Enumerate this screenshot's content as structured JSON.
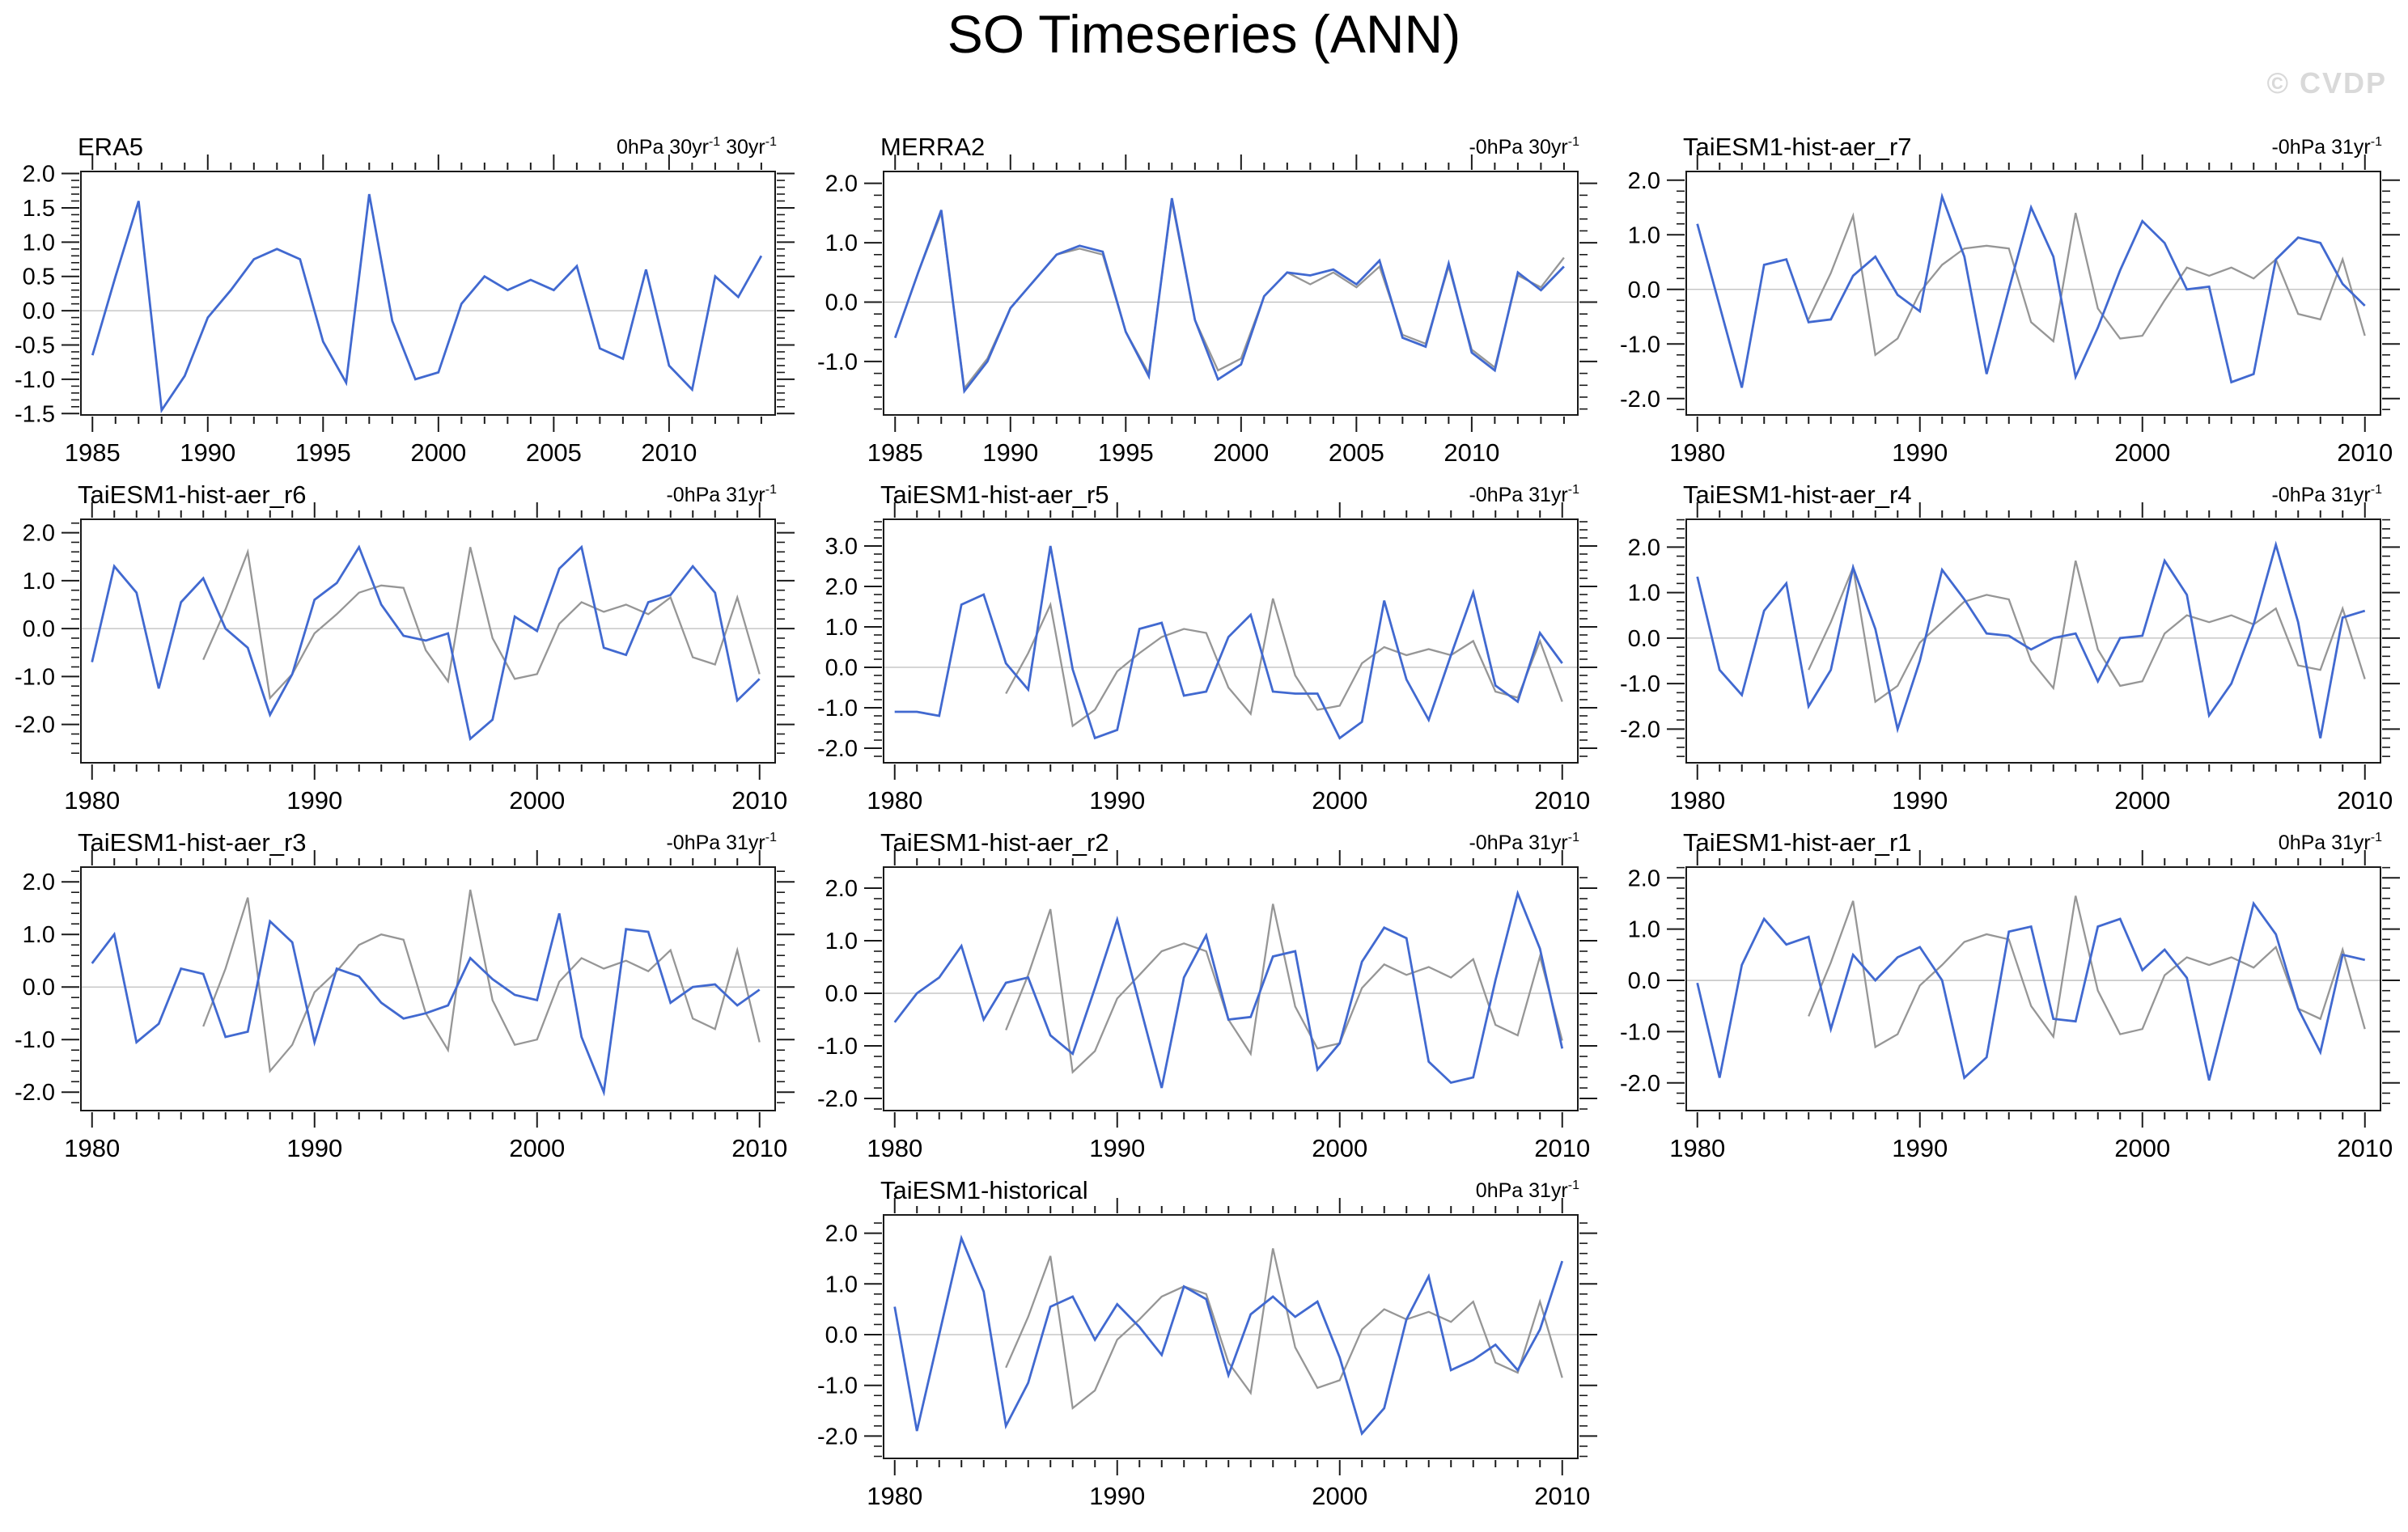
{
  "page": {
    "title": "SO Timeseries (ANN)",
    "watermark": "© CVDP"
  },
  "colors": {
    "model_line": "#4169d0",
    "obs_line": "#969696",
    "zero_line": "#bcbcbc",
    "axis": "#1a1a1a",
    "watermark": "#d9d9d9"
  },
  "chart_data": [
    {
      "type": "line",
      "name": "ERA5",
      "units_label": "0hPa 30yr{-1} 30yr{-1}",
      "position": {
        "row": 0,
        "col": 0
      },
      "xlim": [
        1984.5,
        2014.6
      ],
      "ylim": [
        -1.52,
        2.03
      ],
      "xticks": [
        1985,
        1990,
        1995,
        2000,
        2005,
        2010
      ],
      "yticks": [
        2.0,
        1.5,
        1.0,
        0.5,
        0.0,
        -0.5,
        -1.0,
        -1.5
      ],
      "ytick_minor_step": 0.1,
      "grid": "zero-line-only",
      "legend": "none",
      "series": [
        {
          "name": "ERA5",
          "role": "model",
          "color_key": "model_line",
          "start_year": 1985,
          "values": [
            -0.65,
            0.5,
            1.6,
            -1.45,
            -0.95,
            -0.1,
            0.3,
            0.75,
            0.9,
            0.75,
            -0.45,
            -1.05,
            1.7,
            -0.15,
            -1.0,
            -0.9,
            0.1,
            0.5,
            0.3,
            0.45,
            0.3,
            0.65,
            -0.55,
            -0.7,
            0.6,
            -0.8,
            -1.15,
            0.5,
            0.2,
            0.8
          ]
        }
      ]
    },
    {
      "type": "line",
      "name": "MERRA2",
      "units_label": "-0hPa 30yr{-1}",
      "position": {
        "row": 0,
        "col": 1
      },
      "xlim": [
        1984.5,
        2014.6
      ],
      "ylim": [
        -1.9,
        2.2
      ],
      "xticks": [
        1985,
        1990,
        1995,
        2000,
        2005,
        2010
      ],
      "yticks": [
        2.0,
        1.0,
        0.0,
        -1.0
      ],
      "ytick_minor_step": 0.2,
      "grid": "zero-line-only",
      "legend": "none",
      "series": [
        {
          "name": "MERRA2",
          "role": "model",
          "color_key": "model_line",
          "start_year": 1985,
          "values": [
            -0.6,
            0.5,
            1.55,
            -1.5,
            -1.0,
            -0.1,
            0.35,
            0.8,
            0.95,
            0.85,
            -0.5,
            -1.25,
            1.75,
            -0.3,
            -1.3,
            -1.05,
            0.1,
            0.5,
            0.45,
            0.55,
            0.3,
            0.7,
            -0.6,
            -0.75,
            0.65,
            -0.85,
            -1.15,
            0.5,
            0.2,
            0.6
          ]
        },
        {
          "name": "observations",
          "role": "obs",
          "color_key": "obs_line",
          "start_year": 1985,
          "values": [
            -0.6,
            0.5,
            1.5,
            -1.45,
            -0.95,
            -0.1,
            0.35,
            0.8,
            0.9,
            0.8,
            -0.5,
            -1.2,
            1.7,
            -0.3,
            -1.15,
            -0.95,
            0.1,
            0.5,
            0.3,
            0.5,
            0.25,
            0.6,
            -0.55,
            -0.7,
            0.6,
            -0.8,
            -1.1,
            0.45,
            0.25,
            0.75
          ]
        }
      ]
    },
    {
      "type": "line",
      "name": "TaiESM1-hist-aer_r7",
      "units_label": "-0hPa 31yr{-1}",
      "position": {
        "row": 0,
        "col": 2
      },
      "xlim": [
        1979.5,
        2010.7
      ],
      "ylim": [
        -2.3,
        2.16
      ],
      "xticks": [
        1980,
        1990,
        2000,
        2010
      ],
      "yticks": [
        2.0,
        1.0,
        0.0,
        -1.0,
        -2.0
      ],
      "ytick_minor_step": 0.2,
      "grid": "zero-line-only",
      "legend": "none",
      "series": [
        {
          "name": "TaiESM1-hist-aer_r7",
          "role": "model",
          "color_key": "model_line",
          "start_year": 1980,
          "values": [
            1.2,
            -0.3,
            -1.8,
            0.45,
            0.55,
            -0.6,
            -0.55,
            0.25,
            0.6,
            -0.1,
            -0.4,
            1.7,
            0.6,
            -1.55,
            0.0,
            1.5,
            0.6,
            -1.6,
            -0.7,
            0.35,
            1.25,
            0.85,
            0.0,
            0.05,
            -1.7,
            -1.55,
            0.55,
            0.95,
            0.85,
            0.1,
            -0.3
          ]
        },
        {
          "name": "observations",
          "role": "obs",
          "color_key": "obs_line",
          "start_year": 1985,
          "values": [
            -0.55,
            0.3,
            1.35,
            -1.2,
            -0.9,
            -0.05,
            0.45,
            0.75,
            0.8,
            0.75,
            -0.6,
            -0.95,
            1.4,
            -0.35,
            -0.9,
            -0.85,
            -0.2,
            0.4,
            0.25,
            0.4,
            0.2,
            0.55,
            -0.45,
            -0.55,
            0.55,
            -0.85
          ]
        }
      ]
    },
    {
      "type": "line",
      "name": "TaiESM1-hist-aer_r6",
      "units_label": "-0hPa 31yr{-1}",
      "position": {
        "row": 1,
        "col": 0
      },
      "xlim": [
        1979.5,
        2010.7
      ],
      "ylim": [
        -2.8,
        2.28
      ],
      "xticks": [
        1980,
        1990,
        2000,
        2010
      ],
      "yticks": [
        2.0,
        1.0,
        0.0,
        -1.0,
        -2.0
      ],
      "ytick_minor_step": 0.2,
      "grid": "zero-line-only",
      "legend": "none",
      "series": [
        {
          "name": "TaiESM1-hist-aer_r6",
          "role": "model",
          "color_key": "model_line",
          "start_year": 1980,
          "values": [
            -0.7,
            1.3,
            0.75,
            -1.25,
            0.55,
            1.05,
            0.0,
            -0.4,
            -1.8,
            -0.95,
            0.6,
            0.95,
            1.7,
            0.5,
            -0.15,
            -0.25,
            -0.1,
            -2.3,
            -1.9,
            0.25,
            -0.05,
            1.25,
            1.7,
            -0.4,
            -0.55,
            0.55,
            0.7,
            1.3,
            0.75,
            -1.5,
            -1.05
          ]
        },
        {
          "name": "observations",
          "role": "obs",
          "color_key": "obs_line",
          "start_year": 1985,
          "values": [
            -0.65,
            0.4,
            1.6,
            -1.45,
            -0.95,
            -0.1,
            0.3,
            0.75,
            0.9,
            0.85,
            -0.45,
            -1.1,
            1.7,
            -0.2,
            -1.05,
            -0.95,
            0.1,
            0.55,
            0.35,
            0.5,
            0.3,
            0.65,
            -0.6,
            -0.75,
            0.65,
            -0.95
          ]
        }
      ]
    },
    {
      "type": "line",
      "name": "TaiESM1-hist-aer_r5",
      "units_label": "-0hPa 31yr{-1}",
      "position": {
        "row": 1,
        "col": 1
      },
      "xlim": [
        1979.5,
        2010.7
      ],
      "ylim": [
        -2.36,
        3.66
      ],
      "xticks": [
        1980,
        1990,
        2000,
        2010
      ],
      "yticks": [
        3.0,
        2.0,
        1.0,
        0.0,
        -1.0,
        -2.0
      ],
      "ytick_minor_step": 0.2,
      "grid": "zero-line-only",
      "legend": "none",
      "series": [
        {
          "name": "TaiESM1-hist-aer_r5",
          "role": "model",
          "color_key": "model_line",
          "start_year": 1980,
          "values": [
            -1.1,
            -1.1,
            -1.2,
            1.55,
            1.8,
            0.1,
            -0.55,
            3.0,
            -0.05,
            -1.75,
            -1.55,
            0.95,
            1.1,
            -0.7,
            -0.6,
            0.75,
            1.3,
            -0.6,
            -0.65,
            -0.65,
            -1.75,
            -1.35,
            1.65,
            -0.3,
            -1.3,
            0.3,
            1.85,
            -0.45,
            -0.85,
            0.85,
            0.1
          ]
        },
        {
          "name": "observations",
          "role": "obs",
          "color_key": "obs_line",
          "start_year": 1985,
          "values": [
            -0.65,
            0.35,
            1.55,
            -1.45,
            -1.05,
            -0.1,
            0.35,
            0.75,
            0.95,
            0.85,
            -0.5,
            -1.15,
            1.7,
            -0.2,
            -1.05,
            -0.95,
            0.1,
            0.5,
            0.3,
            0.45,
            0.3,
            0.65,
            -0.6,
            -0.75,
            0.65,
            -0.85
          ]
        }
      ]
    },
    {
      "type": "line",
      "name": "TaiESM1-hist-aer_r4",
      "units_label": "-0hPa 31yr{-1}",
      "position": {
        "row": 1,
        "col": 2
      },
      "xlim": [
        1979.5,
        2010.7
      ],
      "ylim": [
        -2.74,
        2.61
      ],
      "xticks": [
        1980,
        1990,
        2000,
        2010
      ],
      "yticks": [
        2.0,
        1.0,
        0.0,
        -1.0,
        -2.0
      ],
      "ytick_minor_step": 0.2,
      "grid": "zero-line-only",
      "legend": "none",
      "series": [
        {
          "name": "TaiESM1-hist-aer_r4",
          "role": "model",
          "color_key": "model_line",
          "start_year": 1980,
          "values": [
            1.35,
            -0.7,
            -1.25,
            0.6,
            1.2,
            -1.5,
            -0.7,
            1.55,
            0.2,
            -2.0,
            -0.5,
            1.5,
            0.85,
            0.1,
            0.05,
            -0.25,
            0.0,
            0.1,
            -0.95,
            0.0,
            0.05,
            1.7,
            0.95,
            -1.7,
            -1.0,
            0.3,
            2.05,
            0.35,
            -2.2,
            0.45,
            0.6
          ]
        },
        {
          "name": "observations",
          "role": "obs",
          "color_key": "obs_line",
          "start_year": 1985,
          "values": [
            -0.7,
            0.35,
            1.55,
            -1.4,
            -1.05,
            -0.1,
            0.35,
            0.8,
            0.95,
            0.85,
            -0.5,
            -1.1,
            1.7,
            -0.25,
            -1.05,
            -0.95,
            0.1,
            0.5,
            0.35,
            0.5,
            0.3,
            0.65,
            -0.6,
            -0.7,
            0.65,
            -0.9
          ]
        }
      ]
    },
    {
      "type": "line",
      "name": "TaiESM1-hist-aer_r3",
      "units_label": "-0hPa 31yr{-1}",
      "position": {
        "row": 2,
        "col": 0
      },
      "xlim": [
        1979.5,
        2010.7
      ],
      "ylim": [
        -2.35,
        2.28
      ],
      "xticks": [
        1980,
        1990,
        2000,
        2010
      ],
      "yticks": [
        2.0,
        1.0,
        0.0,
        -1.0,
        -2.0
      ],
      "ytick_minor_step": 0.2,
      "grid": "zero-line-only",
      "legend": "none",
      "series": [
        {
          "name": "TaiESM1-hist-aer_r3",
          "role": "model",
          "color_key": "model_line",
          "start_year": 1980,
          "values": [
            0.45,
            1.0,
            -1.05,
            -0.7,
            0.35,
            0.25,
            -0.95,
            -0.85,
            1.25,
            0.85,
            -1.05,
            0.35,
            0.2,
            -0.3,
            -0.6,
            -0.5,
            -0.35,
            0.55,
            0.15,
            -0.15,
            -0.25,
            1.4,
            -0.95,
            -2.0,
            1.1,
            1.05,
            -0.3,
            0.0,
            0.05,
            -0.35,
            -0.05
          ]
        },
        {
          "name": "observations",
          "role": "obs",
          "color_key": "obs_line",
          "start_year": 1985,
          "values": [
            -0.75,
            0.35,
            1.7,
            -1.6,
            -1.1,
            -0.1,
            0.3,
            0.8,
            1.0,
            0.9,
            -0.5,
            -1.2,
            1.85,
            -0.25,
            -1.1,
            -1.0,
            0.1,
            0.55,
            0.35,
            0.5,
            0.3,
            0.7,
            -0.6,
            -0.8,
            0.7,
            -1.05
          ]
        }
      ]
    },
    {
      "type": "line",
      "name": "TaiESM1-hist-aer_r2",
      "units_label": "-0hPa 31yr{-1}",
      "position": {
        "row": 2,
        "col": 1
      },
      "xlim": [
        1979.5,
        2010.7
      ],
      "ylim": [
        -2.23,
        2.4
      ],
      "xticks": [
        1980,
        1990,
        2000,
        2010
      ],
      "yticks": [
        2.0,
        1.0,
        0.0,
        -1.0,
        -2.0
      ],
      "ytick_minor_step": 0.2,
      "grid": "zero-line-only",
      "legend": "none",
      "series": [
        {
          "name": "TaiESM1-hist-aer_r2",
          "role": "model",
          "color_key": "model_line",
          "start_year": 1980,
          "values": [
            -0.55,
            0.0,
            0.3,
            0.9,
            -0.5,
            0.2,
            0.3,
            -0.8,
            -1.15,
            0.1,
            1.4,
            -0.2,
            -1.8,
            0.3,
            1.1,
            -0.5,
            -0.45,
            0.7,
            0.8,
            -1.45,
            -0.95,
            0.6,
            1.25,
            1.05,
            -1.3,
            -1.7,
            -1.6,
            0.25,
            1.9,
            0.85,
            -1.05
          ]
        },
        {
          "name": "observations",
          "role": "obs",
          "color_key": "obs_line",
          "start_year": 1985,
          "values": [
            -0.7,
            0.35,
            1.6,
            -1.5,
            -1.1,
            -0.1,
            0.35,
            0.8,
            0.95,
            0.8,
            -0.5,
            -1.15,
            1.7,
            -0.25,
            -1.05,
            -0.95,
            0.1,
            0.55,
            0.35,
            0.5,
            0.3,
            0.65,
            -0.6,
            -0.8,
            0.7,
            -0.9
          ]
        }
      ]
    },
    {
      "type": "line",
      "name": "TaiESM1-hist-aer_r1",
      "units_label": "0hPa 31yr{-1}",
      "position": {
        "row": 2,
        "col": 2
      },
      "xlim": [
        1979.5,
        2010.7
      ],
      "ylim": [
        -2.54,
        2.21
      ],
      "xticks": [
        1980,
        1990,
        2000,
        2010
      ],
      "yticks": [
        2.0,
        1.0,
        0.0,
        -1.0,
        -2.0
      ],
      "ytick_minor_step": 0.2,
      "grid": "zero-line-only",
      "legend": "none",
      "series": [
        {
          "name": "TaiESM1-hist-aer_r1",
          "role": "model",
          "color_key": "model_line",
          "start_year": 1980,
          "values": [
            -0.05,
            -1.9,
            0.3,
            1.2,
            0.7,
            0.85,
            -0.95,
            0.5,
            0.0,
            0.45,
            0.65,
            0.0,
            -1.9,
            -1.5,
            0.95,
            1.05,
            -0.75,
            -0.8,
            1.05,
            1.2,
            0.2,
            0.6,
            0.05,
            -1.95,
            -0.25,
            1.5,
            0.9,
            -0.55,
            -1.4,
            0.5,
            0.4
          ]
        },
        {
          "name": "observations",
          "role": "obs",
          "color_key": "obs_line",
          "start_year": 1985,
          "values": [
            -0.7,
            0.35,
            1.55,
            -1.3,
            -1.05,
            -0.1,
            0.3,
            0.75,
            0.9,
            0.8,
            -0.5,
            -1.1,
            1.65,
            -0.2,
            -1.05,
            -0.95,
            0.1,
            0.45,
            0.3,
            0.45,
            0.25,
            0.65,
            -0.55,
            -0.75,
            0.6,
            -0.95
          ]
        }
      ]
    },
    {
      "type": "line",
      "name": "TaiESM1-historical",
      "units_label": "0hPa 31yr{-1}",
      "position": {
        "row": 3,
        "col": 1
      },
      "xlim": [
        1979.5,
        2010.7
      ],
      "ylim": [
        -2.44,
        2.36
      ],
      "xticks": [
        1980,
        1990,
        2000,
        2010
      ],
      "yticks": [
        2.0,
        1.0,
        0.0,
        -1.0,
        -2.0
      ],
      "ytick_minor_step": 0.2,
      "grid": "zero-line-only",
      "legend": "none",
      "series": [
        {
          "name": "TaiESM1-historical",
          "role": "model",
          "color_key": "model_line",
          "start_year": 1980,
          "values": [
            0.55,
            -1.9,
            0.0,
            1.9,
            0.85,
            -1.8,
            -0.95,
            0.55,
            0.75,
            -0.1,
            0.6,
            0.15,
            -0.4,
            0.95,
            0.7,
            -0.8,
            0.4,
            0.75,
            0.35,
            0.65,
            -0.45,
            -1.95,
            -1.45,
            0.3,
            1.15,
            -0.7,
            -0.5,
            -0.2,
            -0.7,
            0.1,
            1.45
          ]
        },
        {
          "name": "observations",
          "role": "obs",
          "color_key": "obs_line",
          "start_year": 1985,
          "values": [
            -0.65,
            0.35,
            1.55,
            -1.45,
            -1.1,
            -0.1,
            0.3,
            0.75,
            0.95,
            0.8,
            -0.55,
            -1.15,
            1.7,
            -0.25,
            -1.05,
            -0.9,
            0.1,
            0.5,
            0.3,
            0.45,
            0.25,
            0.65,
            -0.55,
            -0.75,
            0.65,
            -0.85
          ]
        }
      ]
    }
  ]
}
